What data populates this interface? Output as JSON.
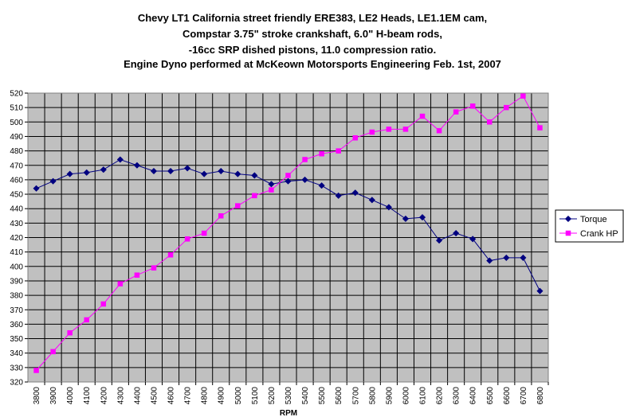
{
  "chart_data": {
    "type": "line",
    "title_lines": [
      "Chevy LT1 California street friendly ERE383, LE2 Heads, LE1.1EM cam,",
      "Compstar 3.75\" stroke crankshaft, 6.0\" H-beam rods,",
      "-16cc SRP dished pistons, 11.0 compression ratio.",
      "Engine Dyno performed at McKeown Motorsports Engineering Feb. 1st, 2007"
    ],
    "xlabel": "RPM",
    "ylabel": "",
    "ylim": [
      320,
      520
    ],
    "ytick_step": 10,
    "grid": true,
    "legend_position": "right",
    "plot_background": "#c0c0c0",
    "gridline_color": "#000000",
    "categories": [
      "3800",
      "3900",
      "4000",
      "4100",
      "4200",
      "4300",
      "4400",
      "4500",
      "4600",
      "4700",
      "4800",
      "4900",
      "5000",
      "5100",
      "5200",
      "5300",
      "5400",
      "5500",
      "5600",
      "5700",
      "5800",
      "5900",
      "6000",
      "6100",
      "6200",
      "6300",
      "6400",
      "6500",
      "6600",
      "6700",
      "6800"
    ],
    "series": [
      {
        "name": "Torque",
        "color": "#000080",
        "marker": "diamond",
        "values": [
          454,
          459,
          464,
          465,
          467,
          474,
          470,
          466,
          466,
          468,
          464,
          466,
          464,
          463,
          457,
          459,
          460,
          456,
          449,
          451,
          446,
          441,
          433,
          434,
          418,
          423,
          419,
          404,
          406,
          406,
          383
        ]
      },
      {
        "name": "Crank HP",
        "color": "#ff00ff",
        "marker": "square",
        "values": [
          328,
          341,
          354,
          363,
          374,
          388,
          394,
          399,
          408,
          419,
          423,
          435,
          442,
          449,
          453,
          463,
          474,
          478,
          480,
          489,
          493,
          495,
          495,
          504,
          494,
          507,
          511,
          500,
          510,
          518,
          496
        ]
      }
    ]
  }
}
